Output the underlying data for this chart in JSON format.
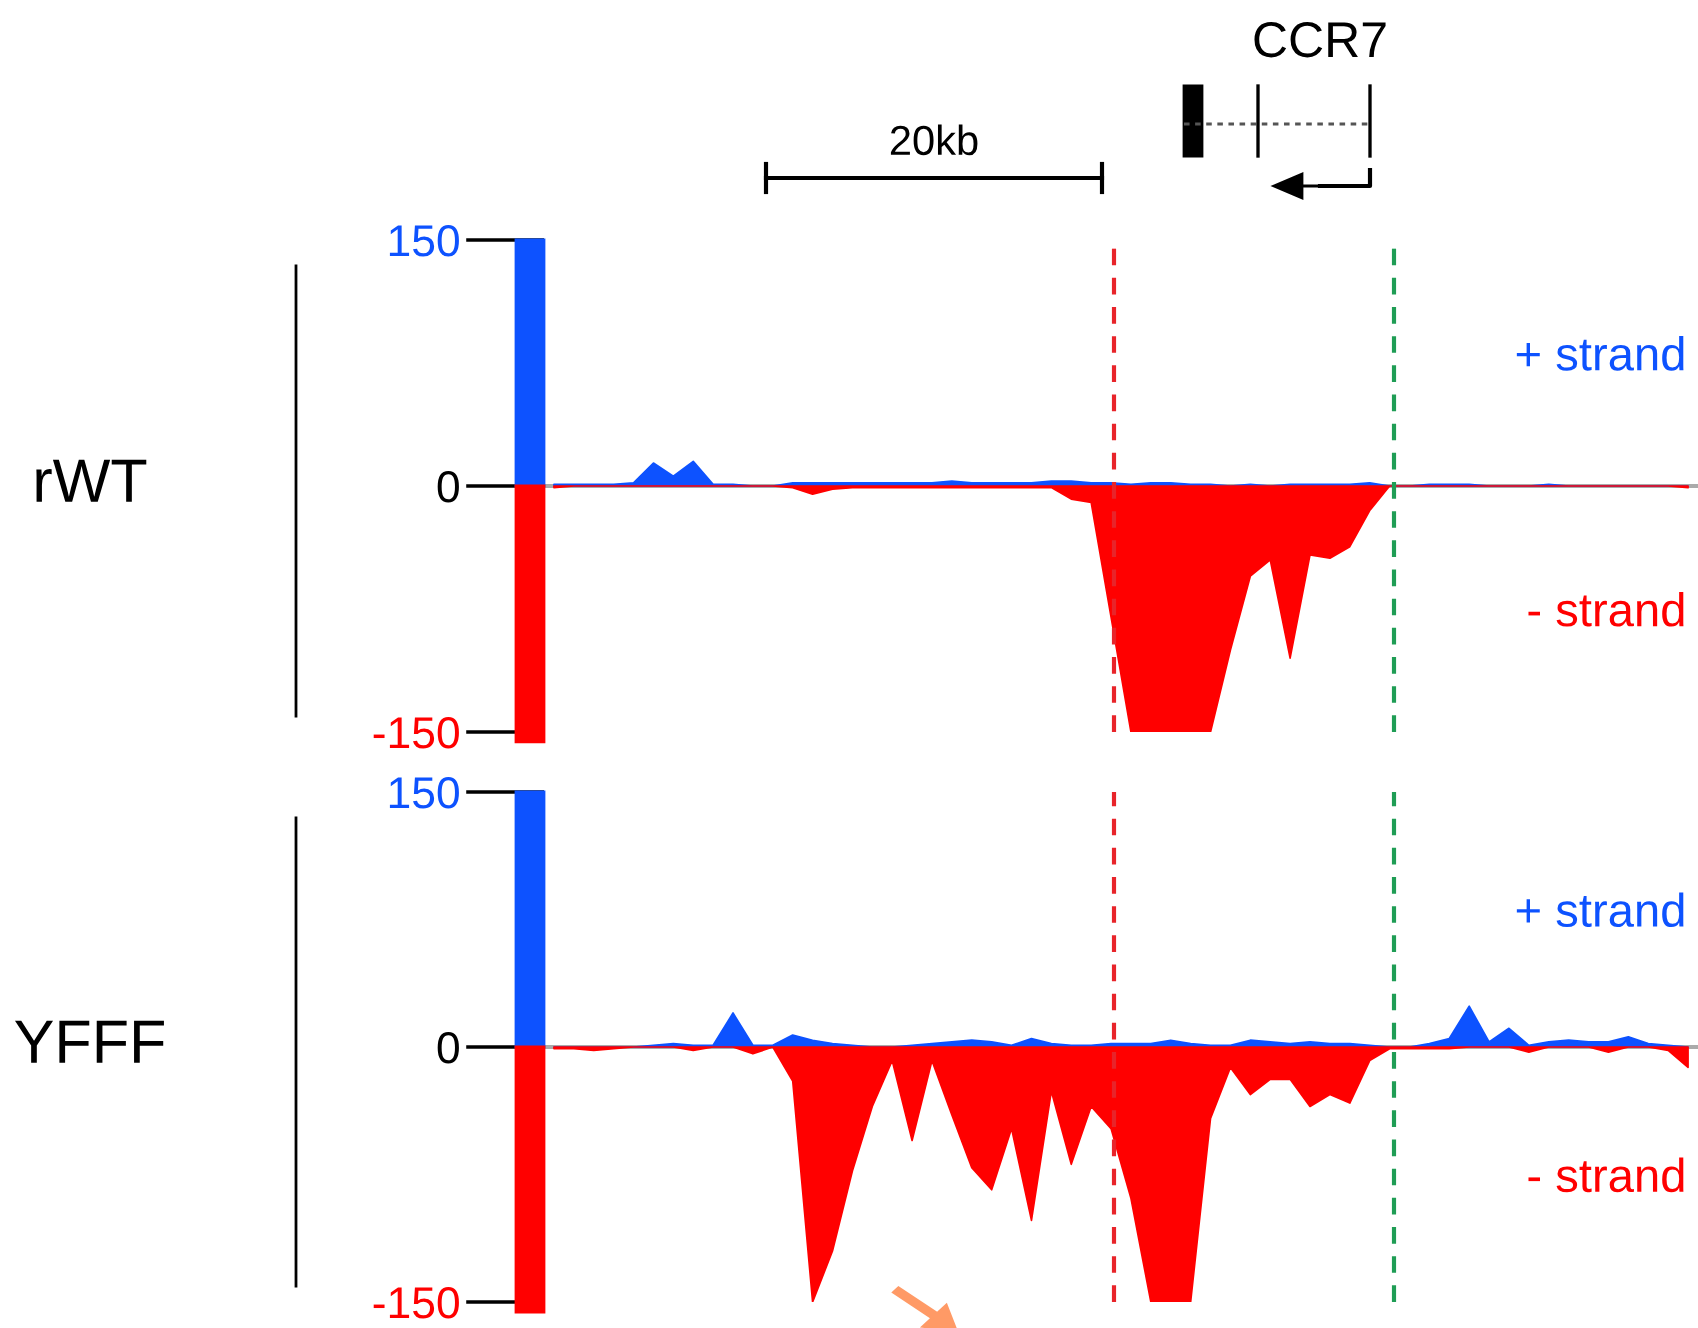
{
  "chart_data": [
    {
      "type": "area",
      "ylabel": "rWT",
      "annotations": [
        "20kb",
        "CCR7"
      ],
      "categories": [
        null,
        null,
        null,
        null,
        null,
        null,
        null,
        null,
        null,
        null,
        null,
        null,
        null,
        null,
        null,
        null,
        null,
        null,
        null,
        null,
        null,
        null,
        null,
        null,
        null,
        null,
        null,
        null,
        null,
        null,
        null,
        null,
        null,
        null,
        null,
        null,
        null,
        null,
        null,
        null,
        null,
        null,
        null,
        null,
        null,
        null,
        null,
        null,
        null,
        null,
        null,
        null,
        null,
        null,
        null,
        null,
        null,
        null
      ],
      "ylim": [
        -150,
        150
      ],
      "yticks": [
        150,
        0,
        -150
      ],
      "grid": false,
      "legend": false,
      "tick_labels": "y",
      "ref_lines": [
        {
          "axis": "y",
          "value": 0,
          "color": "#aaaaaa",
          "line_style": "solid"
        }
      ],
      "series": [
        {
          "name": "+ strand",
          "color": "#0d52ff",
          "values": [
            1,
            1,
            1,
            1,
            2,
            14,
            6,
            15,
            1,
            1,
            0,
            0,
            2,
            2,
            2,
            2,
            2,
            2,
            2,
            2,
            3,
            2,
            2,
            2,
            2,
            3,
            3,
            2,
            2,
            1,
            2,
            2,
            1,
            1,
            0,
            1,
            0,
            1,
            1,
            1,
            1,
            2,
            0,
            0,
            1,
            1,
            1,
            0,
            0,
            0,
            1,
            0,
            0,
            0,
            0,
            0,
            0,
            0
          ]
        },
        {
          "name": "- strand",
          "color": "#ff0000",
          "values": [
            -1,
            0,
            0,
            0,
            0,
            0,
            0,
            0,
            0,
            0,
            0,
            0,
            -1,
            -5,
            -2,
            -1,
            -1,
            -1,
            -1,
            -1,
            -1,
            -1,
            -1,
            -1,
            -1,
            -1,
            -8,
            -10,
            -80,
            -150,
            -150,
            -150,
            -150,
            -150,
            -100,
            -55,
            -45,
            -105,
            -42,
            -44,
            -37,
            -15,
            0,
            0,
            0,
            0,
            0,
            0,
            0,
            0,
            0,
            0,
            0,
            0,
            0,
            0,
            0,
            -1
          ]
        }
      ]
    },
    {
      "type": "area",
      "ylabel": "YFFF",
      "categories": [
        null,
        null,
        null,
        null,
        null,
        null,
        null,
        null,
        null,
        null,
        null,
        null,
        null,
        null,
        null,
        null,
        null,
        null,
        null,
        null,
        null,
        null,
        null,
        null,
        null,
        null,
        null,
        null,
        null,
        null,
        null,
        null,
        null,
        null,
        null,
        null,
        null,
        null,
        null,
        null,
        null,
        null,
        null,
        null,
        null,
        null,
        null,
        null,
        null,
        null,
        null,
        null,
        null,
        null,
        null,
        null,
        null,
        null
      ],
      "ylim": [
        -150,
        150
      ],
      "yticks": [
        150,
        0,
        -150
      ],
      "grid": false,
      "legend": false,
      "tick_labels": "y",
      "ref_lines": [
        {
          "axis": "y",
          "value": 0,
          "color": "#aaaaaa",
          "line_style": "solid"
        }
      ],
      "series": [
        {
          "name": "+ strand",
          "color": "#0d52ff",
          "values": [
            0,
            0,
            0,
            0,
            0,
            1,
            2,
            1,
            1,
            20,
            1,
            1,
            7,
            4,
            2,
            1,
            0,
            0,
            1,
            2,
            3,
            4,
            3,
            1,
            5,
            2,
            1,
            1,
            2,
            2,
            2,
            4,
            2,
            1,
            1,
            4,
            3,
            2,
            3,
            2,
            2,
            1,
            0,
            0,
            2,
            5,
            24,
            3,
            11,
            1,
            3,
            4,
            3,
            3,
            6,
            2,
            1,
            0
          ]
        },
        {
          "name": "- strand",
          "color": "#ff0000",
          "values": [
            -1,
            -1,
            -2,
            -1,
            0,
            0,
            0,
            -2,
            0,
            0,
            -4,
            0,
            -20,
            -150,
            -120,
            -73,
            -35,
            -8,
            -55,
            -8,
            -40,
            -71,
            -84,
            -48,
            -102,
            -26,
            -69,
            -35,
            -48,
            -89,
            -150,
            -150,
            -150,
            -42,
            -12,
            -28,
            -19,
            -19,
            -35,
            -28,
            -33,
            -8,
            -1,
            -1,
            -1,
            -1,
            0,
            0,
            0,
            -3,
            0,
            0,
            0,
            -3,
            0,
            0,
            -2,
            -12
          ]
        }
      ]
    }
  ]
}
